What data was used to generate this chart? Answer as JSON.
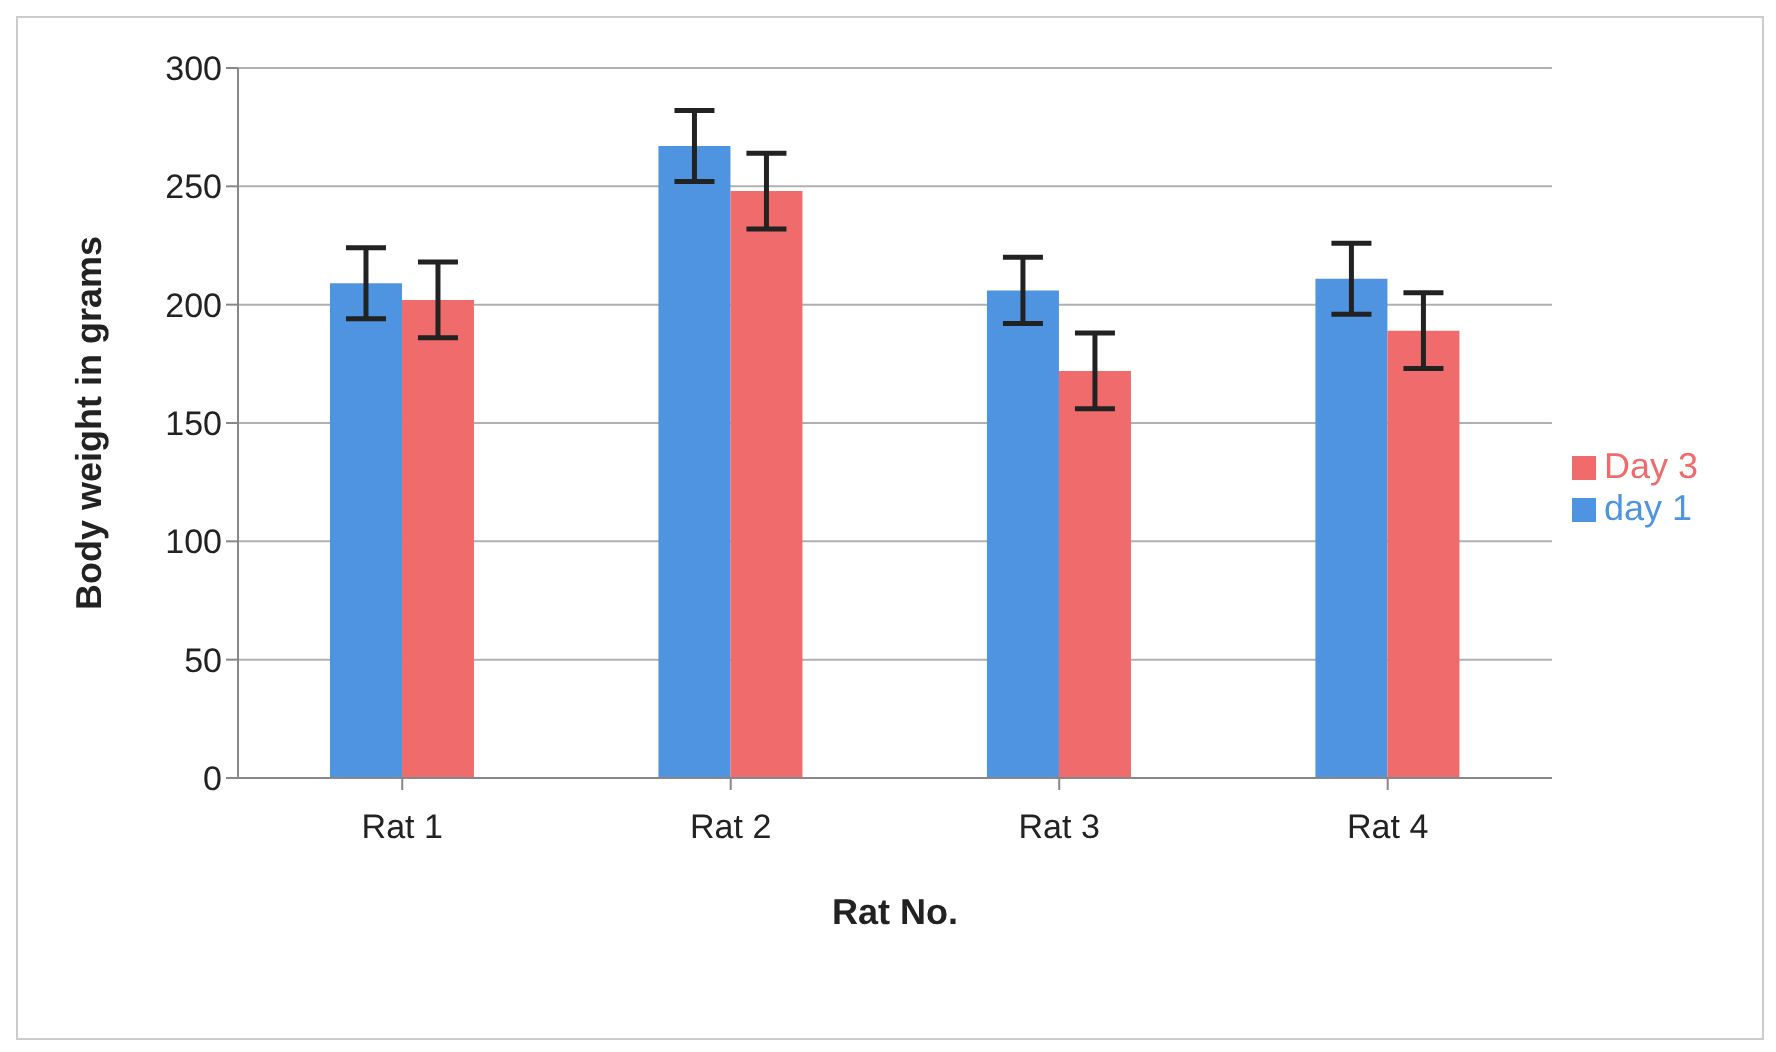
{
  "chart_data": {
    "type": "bar",
    "xlabel": "Rat No.",
    "ylabel": "Body weight in grams",
    "categories": [
      "Rat 1",
      "Rat 2",
      "Rat 3",
      "Rat 4"
    ],
    "series": [
      {
        "name": "day 1",
        "color": "#4f94e0",
        "values": [
          209,
          267,
          206,
          211
        ],
        "errors": [
          15,
          15,
          14,
          15
        ]
      },
      {
        "name": "Day 3",
        "color": "#f06b6b",
        "values": [
          202,
          248,
          172,
          189
        ],
        "errors": [
          16,
          16,
          16,
          16
        ]
      }
    ],
    "ylim": [
      0,
      300
    ],
    "yticks": [
      0,
      50,
      100,
      150,
      200,
      250,
      300
    ],
    "grid": "y",
    "legend": "right"
  }
}
